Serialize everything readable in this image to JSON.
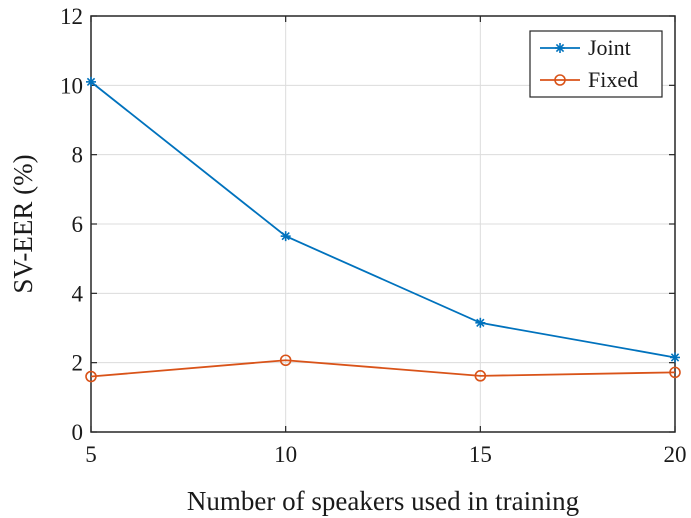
{
  "chart_data": {
    "type": "line",
    "title": "",
    "xlabel": "Number of speakers used in training",
    "ylabel": "SV-EER (%)",
    "x": [
      5,
      10,
      15,
      20
    ],
    "xlim": [
      5,
      20
    ],
    "ylim": [
      0,
      12
    ],
    "xticks": [
      "5",
      "10",
      "15",
      "20"
    ],
    "yticks": [
      "0",
      "2",
      "4",
      "6",
      "8",
      "10",
      "12"
    ],
    "grid": true,
    "legend_position": "top-right",
    "series": [
      {
        "name": "Joint",
        "values": [
          10.1,
          5.65,
          3.15,
          2.15
        ],
        "color": "#0072BD",
        "marker": "asterisk"
      },
      {
        "name": "Fixed",
        "values": [
          1.6,
          2.07,
          1.62,
          1.72
        ],
        "color": "#D95319",
        "marker": "circle"
      }
    ]
  }
}
